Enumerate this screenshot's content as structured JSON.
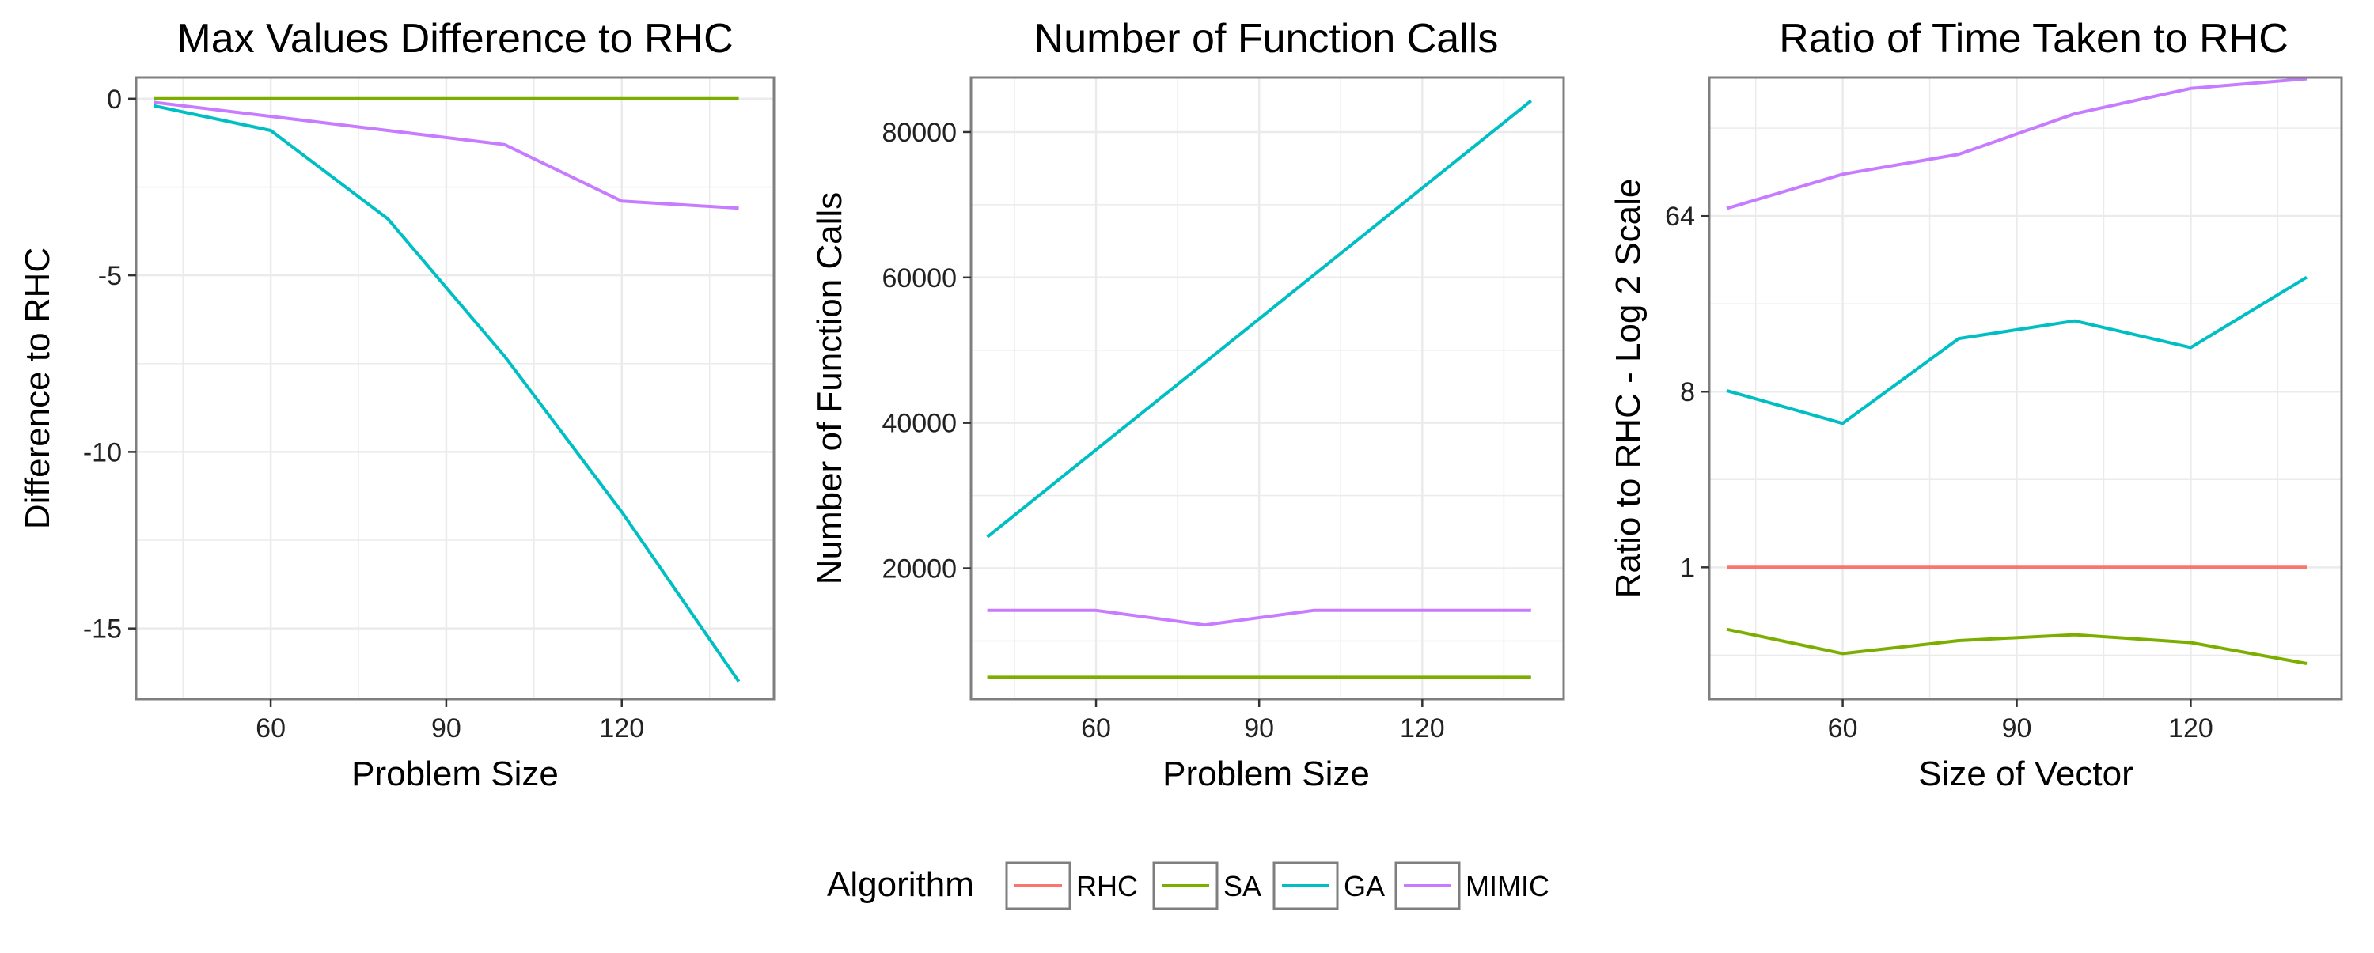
{
  "colors": {
    "RHC": "#F8766D",
    "SA": "#7CAE00",
    "GA": "#00BFC4",
    "MIMIC": "#C77CFF",
    "grid": "#EBEBEB",
    "border": "#7F7F7F"
  },
  "legend": {
    "title": "Algorithm",
    "placement": "bottom",
    "entries": [
      "RHC",
      "SA",
      "GA",
      "MIMIC"
    ]
  },
  "chart_data": [
    {
      "type": "line",
      "title": "Max Values Difference to RHC",
      "xlabel": "Problem Size",
      "ylabel": "Difference to RHC",
      "xlim": [
        37,
        146
      ],
      "ylim": [
        -17,
        0.6
      ],
      "xticks": [
        60,
        90,
        120
      ],
      "xtick_labels": [
        "60",
        "90",
        "120"
      ],
      "yticks": [
        0,
        -5,
        -10,
        -15
      ],
      "ytick_labels": [
        "0",
        "-5",
        "-10",
        "-15"
      ],
      "grid": true,
      "x": [
        40,
        60,
        80,
        100,
        120,
        140
      ],
      "series": [
        {
          "name": "SA",
          "values": [
            0,
            0,
            0,
            0,
            0,
            0
          ]
        },
        {
          "name": "GA",
          "values": [
            -0.2,
            -0.9,
            -3.4,
            -7.3,
            -11.7,
            -16.5
          ]
        },
        {
          "name": "MIMIC",
          "values": [
            -0.1,
            -0.5,
            -0.9,
            -1.3,
            -2.9,
            -3.1
          ]
        }
      ]
    },
    {
      "type": "line",
      "title": "Number of Function Calls",
      "xlabel": "Problem Size",
      "ylabel": "Number of Function Calls",
      "xlim": [
        37,
        146
      ],
      "ylim": [
        2000,
        87500
      ],
      "xticks": [
        60,
        90,
        120
      ],
      "xtick_labels": [
        "60",
        "90",
        "120"
      ],
      "yticks": [
        20000,
        40000,
        60000,
        80000
      ],
      "ytick_labels": [
        "20000",
        "40000",
        "60000",
        "80000"
      ],
      "grid": true,
      "x": [
        40,
        60,
        80,
        100,
        120,
        140
      ],
      "series": [
        {
          "name": "SA",
          "values": [
            5000,
            5000,
            5000,
            5000,
            5000,
            5000
          ]
        },
        {
          "name": "GA",
          "values": [
            24300,
            36300,
            48300,
            60300,
            72300,
            84300
          ]
        },
        {
          "name": "MIMIC",
          "values": [
            14200,
            14200,
            12200,
            14200,
            14200,
            14200
          ]
        }
      ]
    },
    {
      "type": "line",
      "title": "Ratio of Time Taken to RHC",
      "xlabel": "Size of Vector",
      "ylabel": "Ratio to RHC - Log 2 Scale",
      "scale": "log2",
      "xlim": [
        37,
        146
      ],
      "ylim": [
        0.21,
        330
      ],
      "xticks": [
        60,
        90,
        120
      ],
      "xtick_labels": [
        "60",
        "90",
        "120"
      ],
      "yticks": [
        1,
        8,
        64
      ],
      "ytick_labels": [
        "1",
        "8",
        "64"
      ],
      "grid": true,
      "x": [
        40,
        60,
        80,
        100,
        120,
        140
      ],
      "series": [
        {
          "name": "RHC",
          "values": [
            1,
            1,
            1,
            1,
            1,
            1
          ]
        },
        {
          "name": "SA",
          "values": [
            0.48,
            0.36,
            0.42,
            0.45,
            0.41,
            0.32
          ]
        },
        {
          "name": "GA",
          "values": [
            8.1,
            5.5,
            15.0,
            18.5,
            13.5,
            31.0
          ]
        },
        {
          "name": "MIMIC",
          "values": [
            70,
            105,
            133,
            215,
            290,
            325
          ]
        }
      ]
    }
  ]
}
